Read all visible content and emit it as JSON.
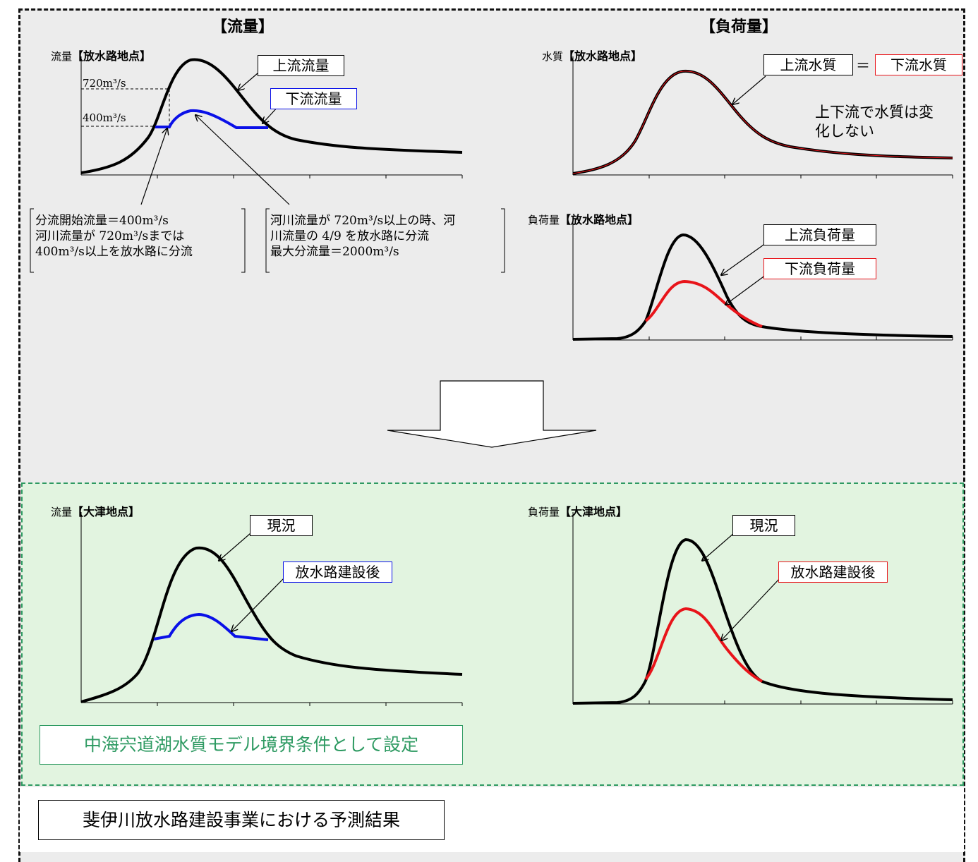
{
  "flow": {
    "title": "【流量】",
    "chart_outlet": {
      "ylabel": "流量",
      "location": "【放水路地点】",
      "level_720": "720m³/s",
      "level_400": "400m³/s",
      "label_upstream": "上流流量",
      "label_downstream": "下流流量"
    },
    "note_left": [
      "分流開始流量＝400m³/s",
      "河川流量が 720m³/sまでは",
      "400m³/s以上を放水路に分流"
    ],
    "note_right": [
      "河川流量が 720m³/s以上の時、河",
      "川流量の 4/9 を放水路に分流",
      "最大分流量＝2000m³/s"
    ]
  },
  "load": {
    "title": "【負荷量】",
    "chart_quality": {
      "ylabel": "水質",
      "location": "【放水路地点】",
      "label_upstream": "上流水質",
      "equals": "＝",
      "label_downstream": "下流水質",
      "note": [
        "上下流で水質は変",
        "化しない"
      ]
    },
    "chart_load": {
      "ylabel": "負荷量",
      "location": "【放水路地点】",
      "label_upstream": "上流負荷量",
      "label_downstream": "下流負荷量"
    }
  },
  "result": {
    "chart_flow": {
      "ylabel": "流量",
      "location": "【大津地点】",
      "label_current": "現況",
      "label_after": "放水路建設後"
    },
    "chart_load": {
      "ylabel": "負荷量",
      "location": "【大津地点】",
      "label_current": "現況",
      "label_after": "放水路建設後"
    },
    "boundary_label": "中海宍道湖水質モデル境界条件として設定"
  },
  "caption": "斐伊川放水路建設事業における予測結果",
  "colors": {
    "upstream": "#000000",
    "downstream_flow": "#0a10e8",
    "downstream_load": "#e8141a",
    "boundary_text": "#2e9a62",
    "panel_green": "#e2f4e0",
    "panel_gray": "#ececec"
  }
}
